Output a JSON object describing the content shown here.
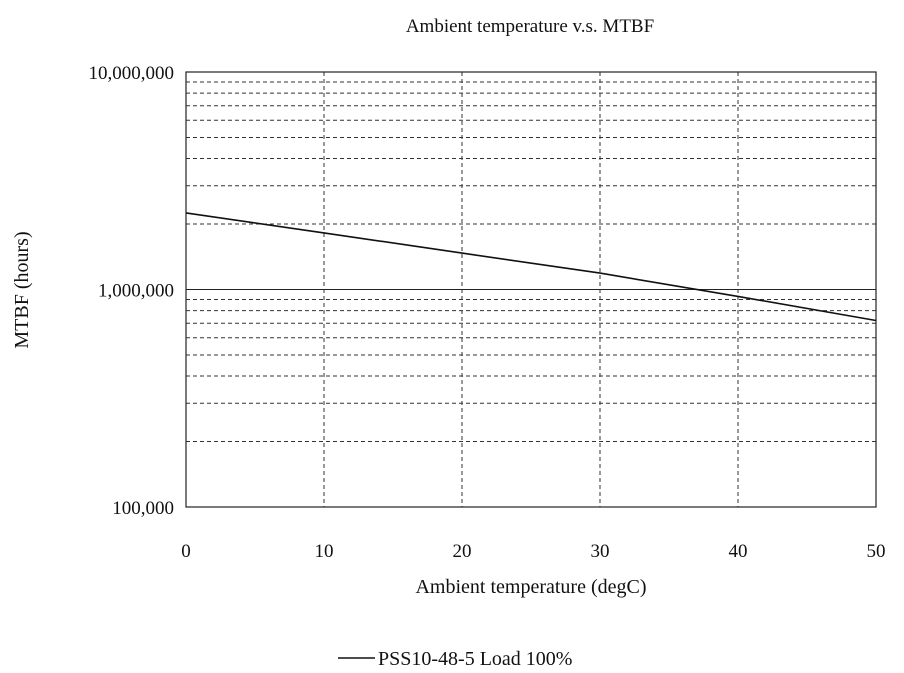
{
  "chart_data": {
    "type": "line",
    "title": "Ambient temperature v.s. MTBF",
    "xlabel": "Ambient temperature (degC)",
    "ylabel": "MTBF (hours)",
    "xlim": [
      0,
      50
    ],
    "ylim": [
      100000,
      10000000
    ],
    "yscale": "log",
    "x_ticks": [
      0,
      10,
      20,
      30,
      40,
      50
    ],
    "y_tick_labels": [
      "100,000",
      "1,000,000",
      "10,000,000"
    ],
    "grid": true,
    "legend": "bottom-center",
    "series": [
      {
        "name": "PSS10-48-5 Load 100%",
        "x": [
          0,
          10,
          20,
          30,
          40,
          50
        ],
        "y": [
          2250000,
          1820000,
          1470000,
          1190000,
          930000,
          720000
        ]
      }
    ]
  }
}
